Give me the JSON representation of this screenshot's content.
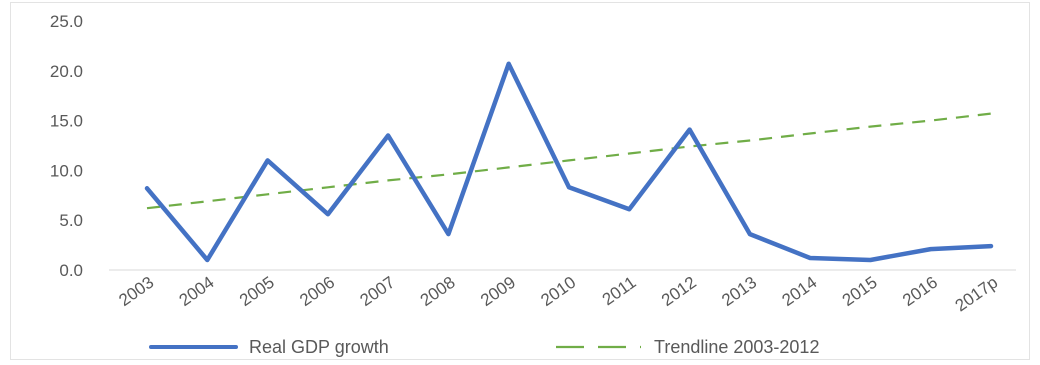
{
  "chart_data": {
    "type": "line",
    "title": "",
    "xlabel": "",
    "ylabel": "",
    "categories": [
      "2003",
      "2004",
      "2005",
      "2006",
      "2007",
      "2008",
      "2009",
      "2010",
      "2011",
      "2012",
      "2013",
      "2014",
      "2015",
      "2016",
      "2017p"
    ],
    "ylim": [
      0,
      25
    ],
    "yticks": [
      "0.0",
      "5.0",
      "10.0",
      "15.0",
      "20.0",
      "25.0"
    ],
    "grid": false,
    "legend_position": "bottom",
    "series": [
      {
        "name": "Real GDP growth",
        "style": "solid",
        "color": "#4472c4",
        "values": [
          8.2,
          1.0,
          11.0,
          5.6,
          13.5,
          3.6,
          20.7,
          8.3,
          6.1,
          14.1,
          3.6,
          1.2,
          1.0,
          2.1,
          2.4
        ]
      },
      {
        "name": "Trendline 2003-2012",
        "style": "dashed",
        "color": "#70ad47",
        "values": [
          6.2,
          6.9,
          7.6,
          8.3,
          9.0,
          9.6,
          10.3,
          11.0,
          11.7,
          12.4,
          13.0,
          13.7,
          14.4,
          15.0,
          15.7
        ]
      }
    ]
  }
}
